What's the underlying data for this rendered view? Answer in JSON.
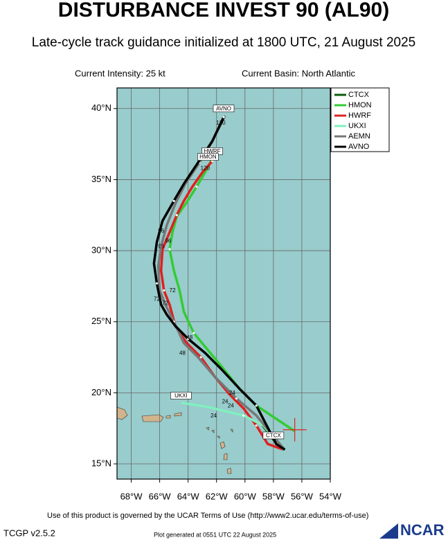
{
  "chart_data": {
    "type": "track-map",
    "title": "DISTURBANCE INVEST 90 (AL90)",
    "subtitle": "Late-cycle track guidance initialized at 1800 UTC, 21 August 2025",
    "intensity": "Current Intensity: 25 kt",
    "basin": "Current Basin: North Atlantic",
    "xlim": [
      -69,
      -54
    ],
    "ylim": [
      13.93,
      41.45
    ],
    "xticks": [
      {
        "value": -68,
        "label": "68°W"
      },
      {
        "value": -66,
        "label": "66°W"
      },
      {
        "value": -64,
        "label": "64°W"
      },
      {
        "value": -62,
        "label": "62°W"
      },
      {
        "value": -60,
        "label": "60°W"
      },
      {
        "value": -58,
        "label": "58°W"
      },
      {
        "value": -56,
        "label": "56°W"
      },
      {
        "value": -54,
        "label": "54°W"
      }
    ],
    "yticks": [
      {
        "value": 15,
        "label": "15°N"
      },
      {
        "value": 20,
        "label": "20°N"
      },
      {
        "value": 25,
        "label": "25°N"
      },
      {
        "value": 30,
        "label": "30°N"
      },
      {
        "value": 35,
        "label": "35°N"
      },
      {
        "value": 40,
        "label": "40°N"
      }
    ],
    "grid": true,
    "ocean_color": "#99cccc",
    "current_position": {
      "lon": -56.5,
      "lat": 17.4,
      "color": "#e02020"
    },
    "series": [
      {
        "name": "CTCX",
        "color": "#0a5c0a",
        "lon": [
          -57.2,
          -58.0,
          -58.9
        ],
        "lat": [
          16.0,
          16.7,
          17.9
        ]
      },
      {
        "name": "HMON",
        "color": "#33cc33",
        "lon": [
          -56.5,
          -57.7,
          -59.2,
          -60.4,
          -61.6,
          -62.6,
          -63.6,
          -64.3,
          -64.6,
          -65.0,
          -65.3,
          -65.1,
          -64.8,
          -64.1,
          -63.4,
          -62.7,
          -62.3
        ],
        "lat": [
          17.3,
          18.1,
          19.1,
          20.3,
          21.8,
          23.0,
          24.2,
          25.7,
          27.2,
          28.6,
          30.1,
          31.3,
          32.4,
          33.4,
          34.5,
          35.7,
          36.5
        ]
      },
      {
        "name": "HWRF",
        "color": "#e02020",
        "lon": [
          -57.3,
          -58.4,
          -59.2,
          -60.1,
          -61.1,
          -62.1,
          -63.1,
          -64.1,
          -64.9,
          -65.3,
          -65.7,
          -65.9,
          -65.8,
          -65.3,
          -64.8,
          -64.3,
          -63.7,
          -63.0,
          -62.3
        ],
        "lat": [
          16.0,
          16.4,
          17.7,
          18.9,
          19.9,
          21.1,
          22.5,
          23.5,
          24.7,
          26.2,
          27.2,
          28.6,
          30.1,
          31.3,
          32.5,
          33.5,
          34.5,
          35.5,
          36.3
        ]
      },
      {
        "name": "UKXI",
        "color": "#80f0c0",
        "lon": [
          -57.3,
          -58.7,
          -60.1,
          -62.6,
          -64.5
        ],
        "lat": [
          16.0,
          17.7,
          18.4,
          19.0,
          19.3
        ]
      },
      {
        "name": "AEMN",
        "color": "#777777",
        "lon": [
          -57.3,
          -59.2,
          -60.6,
          -62.1,
          -63.3,
          -64.3,
          -65.0,
          -65.6,
          -66.0,
          -66.1,
          -65.9,
          -65.5,
          -64.9,
          -64.2,
          -63.2,
          -62.3,
          -61.4
        ],
        "lat": [
          16.1,
          18.4,
          19.6,
          21.1,
          22.5,
          23.5,
          25.0,
          26.2,
          27.2,
          28.9,
          30.3,
          31.8,
          33.3,
          34.7,
          36.2,
          37.7,
          39.5
        ]
      },
      {
        "name": "AVNO",
        "color": "#000000",
        "lon": [
          -57.2,
          -57.8,
          -59.2,
          -60.4,
          -61.6,
          -62.8,
          -64.0,
          -64.9,
          -65.5,
          -65.9,
          -66.2,
          -66.4,
          -66.2,
          -65.8,
          -65.0,
          -64.3,
          -63.3,
          -62.3,
          -61.5
        ],
        "lat": [
          16.0,
          16.4,
          19.1,
          20.3,
          21.6,
          22.8,
          23.8,
          24.7,
          25.5,
          26.2,
          27.7,
          29.1,
          30.6,
          32.1,
          33.5,
          34.7,
          36.2,
          37.7,
          39.4
        ]
      }
    ],
    "annotations": [
      {
        "text": "AVNO",
        "lon": -61.5,
        "lat": 40.0,
        "boxed": true
      },
      {
        "text": "HWRF",
        "lon": -62.3,
        "lat": 37.0,
        "boxed": true
      },
      {
        "text": "HMON",
        "lon": -62.6,
        "lat": 36.6,
        "boxed": true
      },
      {
        "text": "UKXI",
        "lon": -64.5,
        "lat": 19.8,
        "boxed": true
      },
      {
        "text": "CTCX",
        "lon": -58.0,
        "lat": 17.0,
        "boxed": true
      },
      {
        "text": "120",
        "lon": -61.7,
        "lat": 39.0,
        "boxed": false
      },
      {
        "text": "120",
        "lon": -62.8,
        "lat": 35.8,
        "boxed": false
      },
      {
        "text": "96",
        "lon": -65.9,
        "lat": 31.4,
        "boxed": false
      },
      {
        "text": "96",
        "lon": -65.4,
        "lat": 30.7,
        "boxed": false
      },
      {
        "text": "96",
        "lon": -65.9,
        "lat": 30.3,
        "boxed": false
      },
      {
        "text": "72",
        "lon": -65.1,
        "lat": 27.2,
        "boxed": false
      },
      {
        "text": "72",
        "lon": -66.2,
        "lat": 26.6,
        "boxed": false
      },
      {
        "text": "72",
        "lon": -65.6,
        "lat": 26.3,
        "boxed": false
      },
      {
        "text": "48",
        "lon": -63.9,
        "lat": 23.9,
        "boxed": false
      },
      {
        "text": "48",
        "lon": -64.4,
        "lat": 22.8,
        "boxed": false
      },
      {
        "text": "24",
        "lon": -60.9,
        "lat": 20.0,
        "boxed": false
      },
      {
        "text": "24",
        "lon": -61.4,
        "lat": 19.4,
        "boxed": false
      },
      {
        "text": "24",
        "lon": -61.0,
        "lat": 19.1,
        "boxed": false
      },
      {
        "text": "24",
        "lon": -62.2,
        "lat": 18.4,
        "boxed": false
      }
    ],
    "terms": "Use of this product is governed by the UCAR Terms of Use (http://www2.ucar.edu/terms-of-use)",
    "version": "TCGP v2.5.2",
    "generated": "Plot generated at 0551 UTC   22 August 2025",
    "logo": "NCAR"
  }
}
